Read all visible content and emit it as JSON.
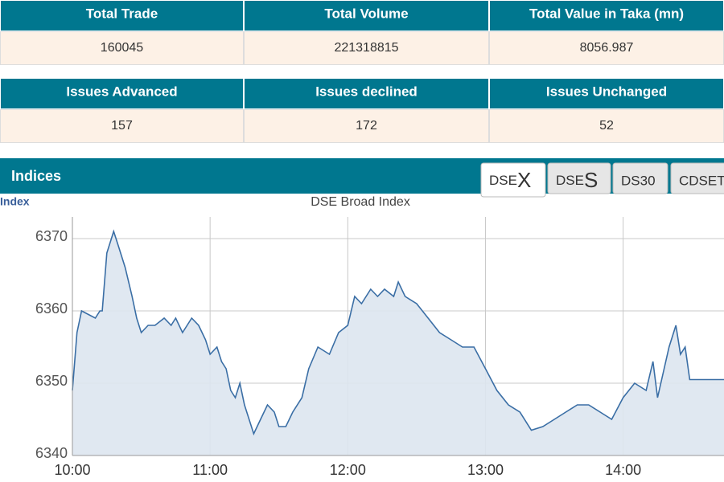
{
  "stats": [
    {
      "headers": [
        "Total Trade",
        "Total Volume",
        "Total Value in Taka (mn)"
      ],
      "values": [
        160045,
        221318815,
        8056.987
      ]
    },
    {
      "headers": [
        "Issues Advanced",
        "Issues declined",
        "Issues Unchanged"
      ],
      "values": [
        157,
        172,
        52
      ]
    }
  ],
  "indices_panel": {
    "title": "Indices",
    "tabs": [
      {
        "prefix": "DSE",
        "suffix": "X"
      },
      {
        "prefix": "DSE",
        "suffix": "S"
      },
      {
        "label": "DS30"
      },
      {
        "label": "CDSET"
      }
    ]
  },
  "chart_data": {
    "type": "line",
    "title": "DSE Broad Index",
    "y_label": "Index",
    "x": [
      "10:00",
      "10:02",
      "10:04",
      "10:07",
      "10:10",
      "10:12",
      "10:13",
      "10:15",
      "10:18",
      "10:20",
      "10:23",
      "10:26",
      "10:28",
      "10:30",
      "10:33",
      "10:36",
      "10:40",
      "10:43",
      "10:45",
      "10:48",
      "10:52",
      "10:55",
      "10:58",
      "11:00",
      "11:03",
      "11:05",
      "11:07",
      "11:09",
      "11:11",
      "11:13",
      "11:15",
      "11:19",
      "11:22",
      "11:25",
      "11:28",
      "11:30",
      "11:33",
      "11:36",
      "11:40",
      "11:43",
      "11:47",
      "11:52",
      "11:56",
      "12:00",
      "12:03",
      "12:06",
      "12:10",
      "12:13",
      "12:16",
      "12:20",
      "12:22",
      "12:25",
      "12:30",
      "12:35",
      "12:40",
      "12:45",
      "12:50",
      "12:55",
      "13:00",
      "13:05",
      "13:10",
      "13:15",
      "13:20",
      "13:25",
      "13:30",
      "13:35",
      "13:40",
      "13:45",
      "13:50",
      "13:55",
      "14:00",
      "14:05",
      "14:10",
      "14:13",
      "14:15",
      "14:20",
      "14:23",
      "14:25",
      "14:27",
      "14:29",
      "14:44"
    ],
    "values": [
      6349,
      6357,
      6360,
      6359.5,
      6359,
      6360,
      6360,
      6368,
      6371,
      6369,
      6366,
      6362,
      6359,
      6357,
      6358,
      6358,
      6359,
      6358,
      6359,
      6357,
      6359,
      6358,
      6356,
      6354,
      6355,
      6353,
      6352,
      6349,
      6348,
      6350,
      6347,
      6343,
      6345,
      6347,
      6346,
      6344,
      6344,
      6346,
      6348,
      6352,
      6355,
      6354,
      6357,
      6358,
      6362,
      6361,
      6363,
      6362,
      6363,
      6362,
      6364,
      6362,
      6361,
      6359,
      6357,
      6356,
      6355,
      6355,
      6352,
      6349,
      6347,
      6346,
      6343.5,
      6344,
      6345,
      6346,
      6347,
      6347,
      6346,
      6345,
      6348,
      6350,
      6349,
      6353,
      6348,
      6355,
      6358,
      6354,
      6355,
      6350.5,
      6350.5
    ],
    "color": "#3a6ea5",
    "fill": "#dde5ef",
    "xlim": [
      "10:00",
      "14:45"
    ],
    "xticks": [
      "10:00",
      "11:00",
      "12:00",
      "13:00",
      "14:00"
    ],
    "ylim": [
      6340,
      6373
    ],
    "yticks": [
      6340,
      6350,
      6360,
      6370
    ],
    "grid": true
  }
}
